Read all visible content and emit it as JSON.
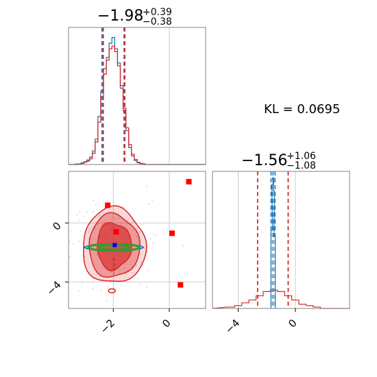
{
  "chart_data": {
    "type": "corner",
    "kl_label": "KL = 0.0695",
    "colors": {
      "red": "#d62728",
      "blue": "#1f77b4",
      "green": "#2ca02c",
      "square": "#ff0000",
      "marker_blue": "#0000ff"
    },
    "param1": {
      "title_main": "−1.98",
      "title_plus": "+0.39",
      "title_minus": "−0.38",
      "xlim": [
        -3.6,
        1.3
      ],
      "quantiles": [
        -2.36,
        -1.98,
        -1.59
      ],
      "ref_quantiles": [
        -2.38,
        -1.99,
        -1.59
      ],
      "hist_centers": [
        -3.3,
        -3.2,
        -3.1,
        -3.0,
        -2.9,
        -2.8,
        -2.7,
        -2.6,
        -2.5,
        -2.4,
        -2.3,
        -2.2,
        -2.1,
        -2.0,
        -1.9,
        -1.8,
        -1.7,
        -1.6,
        -1.5,
        -1.4,
        -1.3,
        -1.2,
        -1.1,
        -1.0,
        -0.9,
        -0.8
      ],
      "hist_red": [
        0,
        1,
        2,
        4,
        6,
        10,
        20,
        40,
        75,
        120,
        160,
        185,
        205,
        210,
        200,
        175,
        140,
        100,
        65,
        35,
        18,
        9,
        4,
        2,
        1,
        0
      ],
      "hist_blue": [
        1,
        1,
        3,
        5,
        8,
        13,
        24,
        45,
        85,
        130,
        170,
        190,
        215,
        225,
        205,
        180,
        135,
        95,
        60,
        30,
        15,
        7,
        3,
        1,
        0,
        0
      ]
    },
    "param2": {
      "title_main": "−1.56",
      "title_plus": "+1.06",
      "title_minus": "−1.08",
      "xlim": [
        -5.8,
        3.8
      ],
      "quantiles": [
        -2.64,
        -1.56,
        -0.5
      ],
      "narrow_quantiles": [
        -1.7,
        -1.56,
        -1.42
      ],
      "hist_centers": [
        -4.5,
        -4.0,
        -3.5,
        -3.0,
        -2.5,
        -2.0,
        -1.5,
        -1.0,
        -0.5,
        0.0,
        0.5,
        1.0,
        1.5
      ],
      "hist_red": [
        1,
        2,
        4,
        6,
        9,
        12,
        13,
        12,
        9,
        6,
        3,
        2,
        1
      ],
      "narrow_x": [
        -1.65,
        -1.6,
        -1.55,
        -1.5,
        -1.45
      ],
      "narrow_y": [
        60,
        95,
        100,
        90,
        55
      ]
    },
    "joint": {
      "xlim": [
        -3.6,
        1.3
      ],
      "ylim": [
        -5.8,
        3.5
      ],
      "center": [
        -1.98,
        -1.56
      ],
      "xticks": [
        -2,
        0
      ],
      "yticks": [
        0,
        -4
      ],
      "outliers": [
        [
          0.7,
          2.8
        ],
        [
          -2.2,
          1.2
        ],
        [
          0.1,
          -0.7
        ],
        [
          0.4,
          -4.2
        ],
        [
          -1.9,
          -0.6
        ]
      ],
      "blue_marker": [
        -1.95,
        -1.5
      ]
    }
  }
}
